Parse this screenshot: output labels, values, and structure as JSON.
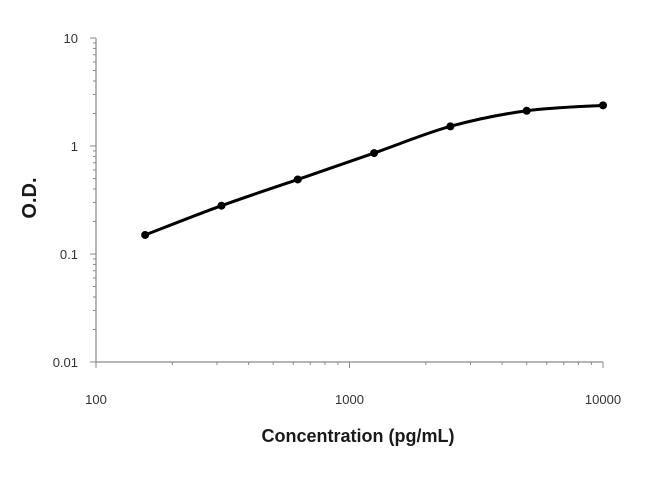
{
  "chart_data": {
    "type": "line",
    "title": "",
    "xlabel": "Concentration (pg/mL)",
    "ylabel": "O.D.",
    "xscale": "log",
    "yscale": "log",
    "xlim": [
      100,
      10000
    ],
    "ylim": [
      0.01,
      10
    ],
    "x_ticks": [
      "100",
      "1000",
      "10000"
    ],
    "y_ticks": [
      "10",
      "1",
      "0.1",
      "0.01"
    ],
    "grid": false,
    "legend": "none",
    "series": [
      {
        "color": "#000000",
        "marker": "circle",
        "smooth": true,
        "x": [
          156.25,
          312.5,
          625,
          1250,
          2500,
          5000,
          10000
        ],
        "y": [
          0.15,
          0.28,
          0.49,
          0.86,
          1.52,
          2.12,
          2.38
        ]
      }
    ]
  }
}
